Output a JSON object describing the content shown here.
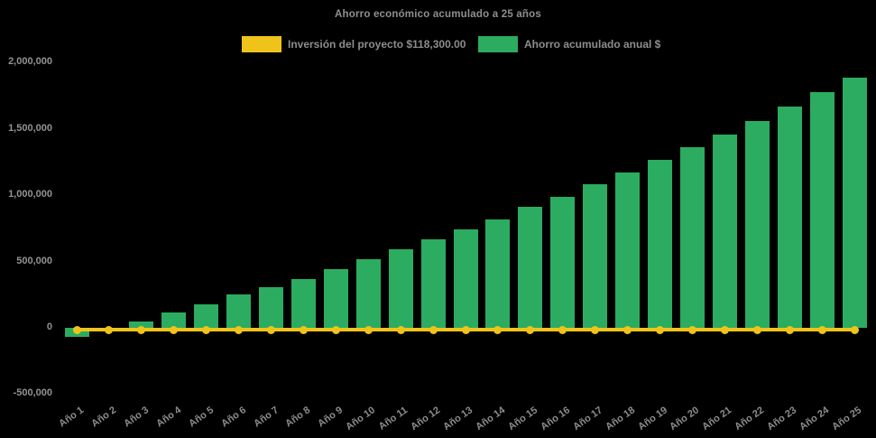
{
  "title": "Ahorro económico acumulado a 25 años",
  "colors": {
    "background": "#000000",
    "bar_green": "#2BAC60",
    "line_yellow": "#EFC41A",
    "text_gray": "#8f8f8f"
  },
  "legend": {
    "items": [
      {
        "label": "Inversión del proyecto $118,300.00",
        "color": "#EFC41A",
        "series": "line"
      },
      {
        "label": "Ahorro acumulado anual $",
        "color": "#2BAC60",
        "series": "bar"
      }
    ]
  },
  "chart_data": {
    "type": "bar",
    "title": "Ahorro económico acumulado a 25 años",
    "xlabel": "",
    "ylabel": "",
    "categories": [
      "Año 1",
      "Año 2",
      "Año 3",
      "Año 4",
      "Año 5",
      "Año 6",
      "Año 7",
      "Año 8",
      "Año 9",
      "Año 10",
      "Año 11",
      "Año 12",
      "Año 13",
      "Año 14",
      "Año 15",
      "Año 16",
      "Año 17",
      "Año 18",
      "Año 19",
      "Año 20",
      "Año 21",
      "Año 22",
      "Año 23",
      "Año 24",
      "Año 25"
    ],
    "series": [
      {
        "name": "Ahorro acumulado anual $",
        "type": "bar",
        "color": "#2BAC60",
        "values": [
          -70000,
          0,
          50000,
          115000,
          175000,
          250000,
          305000,
          370000,
          440000,
          515000,
          590000,
          665000,
          740000,
          815000,
          910000,
          990000,
          1080000,
          1170000,
          1265000,
          1360000,
          1460000,
          1560000,
          1670000,
          1775000,
          1885000
        ]
      },
      {
        "name": "Inversión del proyecto $118,300.00",
        "type": "line",
        "color": "#EFC41A",
        "marker": "circle",
        "values": [
          0,
          0,
          0,
          0,
          0,
          0,
          0,
          0,
          0,
          0,
          0,
          0,
          0,
          0,
          0,
          0,
          0,
          0,
          0,
          0,
          0,
          0,
          0,
          0,
          0
        ]
      }
    ],
    "ylim": [
      -500000,
      2000000
    ],
    "yticks": [
      2000000,
      1500000,
      1000000,
      500000,
      0,
      -500000
    ],
    "ytick_labels": [
      "2,000,000",
      "1,500,000",
      "1,000,000",
      "500,000",
      "0",
      "-500,000"
    ],
    "grid": false,
    "legend_position": "top"
  }
}
